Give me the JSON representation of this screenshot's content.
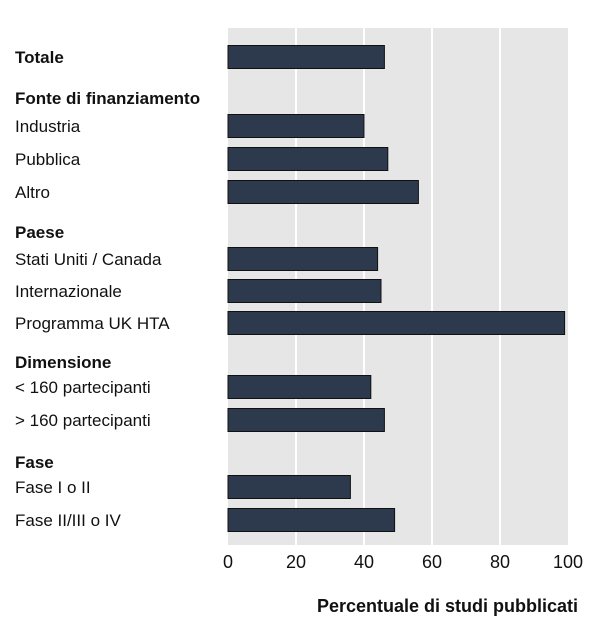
{
  "chart_data": {
    "type": "bar",
    "orientation": "horizontal",
    "xlabel": "Percentuale di studi pubblicati",
    "xlim": [
      0,
      100
    ],
    "xticks": [
      0,
      20,
      40,
      60,
      80,
      100
    ],
    "grid": "vertical",
    "colors": {
      "bar": "#2d3a4e",
      "bar_edge": "#111111",
      "plot_bg": "#e6e6e6",
      "grid": "#ffffff"
    },
    "rows": [
      {
        "label": "Totale",
        "header": true,
        "value": 46
      },
      {
        "label": "Fonte di finanziamento",
        "header": true,
        "value": null
      },
      {
        "label": "Industria",
        "header": false,
        "value": 40
      },
      {
        "label": "Pubblica",
        "header": false,
        "value": 47
      },
      {
        "label": "Altro",
        "header": false,
        "value": 56
      },
      {
        "label": "Paese",
        "header": true,
        "value": null
      },
      {
        "label": "Stati Uniti / Canada",
        "header": false,
        "value": 44
      },
      {
        "label": "Internazionale",
        "header": false,
        "value": 45
      },
      {
        "label": "Programma UK HTA",
        "header": false,
        "value": 99
      },
      {
        "label": "Dimensione",
        "header": true,
        "value": null
      },
      {
        "label": "< 160 partecipanti",
        "header": false,
        "value": 42
      },
      {
        "label": "> 160 partecipanti",
        "header": false,
        "value": 46
      },
      {
        "label": "Fase",
        "header": true,
        "value": null
      },
      {
        "label": "Fase I o II",
        "header": false,
        "value": 36
      },
      {
        "label": "Fase II/III o IV",
        "header": false,
        "value": 49
      }
    ]
  }
}
